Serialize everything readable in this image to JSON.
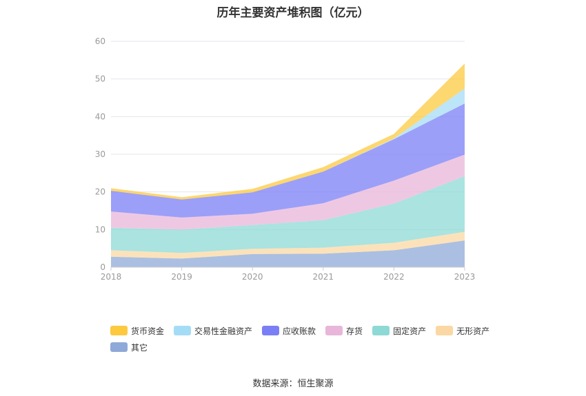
{
  "chart_data": {
    "type": "area",
    "stacked": true,
    "title": "历年主要资产堆积图（亿元）",
    "x": [
      "2018",
      "2019",
      "2020",
      "2021",
      "2022",
      "2023"
    ],
    "ylim": [
      0,
      60
    ],
    "yticks": [
      0,
      10,
      20,
      30,
      40,
      50,
      60
    ],
    "grid": true,
    "legend_position": "bottom-left",
    "series": [
      {
        "name": "其它",
        "color": "#8fa9d8",
        "values": [
          2.8,
          2.3,
          3.5,
          3.6,
          4.5,
          7.1
        ]
      },
      {
        "name": "无形资产",
        "color": "#fbd8a3",
        "values": [
          1.7,
          1.5,
          1.4,
          1.6,
          2.0,
          2.3
        ]
      },
      {
        "name": "固定资产",
        "color": "#8ed9d5",
        "values": [
          6.0,
          6.2,
          6.3,
          7.3,
          10.4,
          14.8
        ]
      },
      {
        "name": "存货",
        "color": "#e8b6d9",
        "values": [
          4.3,
          3.2,
          3.0,
          4.5,
          6.1,
          5.7
        ]
      },
      {
        "name": "应收账款",
        "color": "#7b7ff5",
        "values": [
          5.5,
          4.8,
          5.7,
          8.4,
          11.0,
          13.6
        ]
      },
      {
        "name": "交易性金融资产",
        "color": "#a5dcf5",
        "values": [
          0,
          0,
          0,
          0,
          0.2,
          4.0
        ]
      },
      {
        "name": "货币资金",
        "color": "#fcc93f",
        "values": [
          0.7,
          0.6,
          0.9,
          1.2,
          1.2,
          6.6
        ]
      }
    ],
    "legend_order": [
      "货币资金",
      "交易性金融资产",
      "应收账款",
      "存货",
      "固定资产",
      "无形资产",
      "其它"
    ]
  },
  "source": "数据来源：恒生聚源"
}
